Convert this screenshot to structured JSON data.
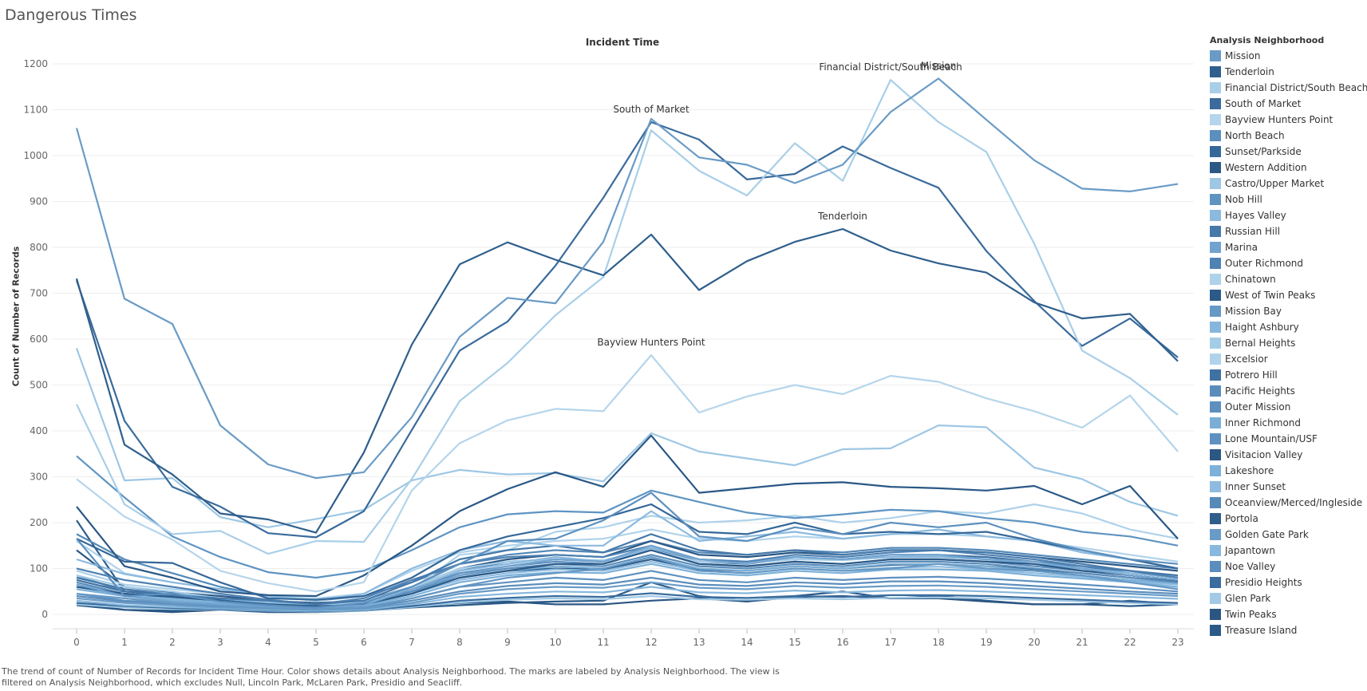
{
  "page": {
    "title": "Dangerous Times",
    "column_header": "Incident Time",
    "y_axis_title": "Count of Number of Records",
    "caption": "The trend of count of Number of Records for Incident Time Hour.  Color shows details about Analysis Neighborhood.  The marks are labeled by Analysis Neighborhood. The view is filtered on Analysis Neighborhood, which excludes Null, Lincoln Park, McLaren Park, Presidio and Seacliff."
  },
  "legend": {
    "title": "Analysis Neighborhood"
  },
  "chart_data": {
    "type": "line",
    "title": "Dangerous Times",
    "xlabel": "Incident Time",
    "ylabel": "Count of Number of Records",
    "x": [
      0,
      1,
      2,
      3,
      4,
      5,
      6,
      7,
      8,
      9,
      10,
      11,
      12,
      13,
      14,
      15,
      16,
      17,
      18,
      19,
      20,
      21,
      22,
      23
    ],
    "ylim": [
      0,
      1200
    ],
    "yticks": [
      0,
      100,
      200,
      300,
      400,
      500,
      600,
      700,
      800,
      900,
      1000,
      1100,
      1200
    ],
    "grid": "horizontal",
    "legend_position": "right",
    "series": [
      {
        "name": "Mission",
        "color": "#6a9bc6",
        "label": true,
        "values": [
          1060,
          688,
          633,
          412,
          327,
          297,
          310,
          430,
          605,
          690,
          678,
          812,
          1080,
          996,
          980,
          940,
          980,
          1095,
          1168,
          1078,
          990,
          928,
          922,
          938
        ]
      },
      {
        "name": "Tenderloin",
        "color": "#2f5f8c",
        "label": true,
        "values": [
          732,
          370,
          305,
          220,
          207,
          178,
          353,
          588,
          763,
          811,
          773,
          739,
          828,
          707,
          770,
          812,
          840,
          793,
          765,
          745,
          680,
          645,
          655,
          552
        ]
      },
      {
        "name": "Financial District/South Beach",
        "color": "#a9cfe8",
        "label": true,
        "values": [
          458,
          240,
          175,
          182,
          132,
          160,
          158,
          295,
          465,
          548,
          652,
          735,
          1055,
          967,
          913,
          1027,
          945,
          1165,
          1073,
          1008,
          808,
          575,
          515,
          435
        ]
      },
      {
        "name": "South of Market",
        "color": "#3a6b9c",
        "label": true,
        "values": [
          728,
          422,
          278,
          235,
          177,
          168,
          225,
          402,
          575,
          638,
          760,
          908,
          1073,
          1035,
          948,
          960,
          1020,
          973,
          930,
          792,
          683,
          585,
          645,
          560
        ]
      },
      {
        "name": "Bayview Hunters Point",
        "color": "#b5d5ec",
        "label": true,
        "values": [
          295,
          213,
          163,
          95,
          68,
          50,
          70,
          270,
          373,
          423,
          448,
          443,
          565,
          440,
          475,
          500,
          480,
          520,
          507,
          471,
          443,
          407,
          477,
          355
        ]
      },
      {
        "name": "North Beach",
        "color": "#5b8fbe",
        "label": false,
        "values": [
          165,
          40,
          45,
          28,
          20,
          15,
          25,
          60,
          110,
          160,
          165,
          205,
          265,
          170,
          160,
          190,
          175,
          200,
          190,
          200,
          165,
          140,
          120,
          110
        ]
      },
      {
        "name": "Sunset/Parkside",
        "color": "#356899",
        "label": false,
        "values": [
          165,
          115,
          112,
          70,
          35,
          32,
          40,
          80,
          140,
          170,
          190,
          210,
          240,
          180,
          175,
          200,
          175,
          180,
          175,
          180,
          160,
          140,
          120,
          100
        ]
      },
      {
        "name": "Western Addition",
        "color": "#2a5885",
        "label": false,
        "values": [
          235,
          105,
          80,
          50,
          42,
          40,
          85,
          150,
          225,
          273,
          310,
          278,
          390,
          265,
          275,
          285,
          288,
          278,
          275,
          270,
          280,
          240,
          280,
          165
        ]
      },
      {
        "name": "Castro/Upper Market",
        "color": "#9ec7e4",
        "label": false,
        "values": [
          580,
          292,
          297,
          212,
          190,
          208,
          228,
          292,
          315,
          305,
          308,
          290,
          395,
          355,
          340,
          325,
          360,
          362,
          412,
          408,
          320,
          295,
          245,
          215
        ]
      },
      {
        "name": "Nob Hill",
        "color": "#5f94c2",
        "label": false,
        "values": [
          345,
          255,
          170,
          125,
          92,
          80,
          95,
          140,
          190,
          218,
          225,
          222,
          270,
          245,
          222,
          210,
          218,
          228,
          225,
          210,
          200,
          180,
          170,
          150
        ]
      },
      {
        "name": "Hayes Valley",
        "color": "#8cbadf",
        "label": false,
        "values": [
          120,
          88,
          70,
          55,
          40,
          30,
          45,
          100,
          140,
          160,
          150,
          150,
          225,
          160,
          170,
          180,
          165,
          175,
          185,
          170,
          160,
          135,
          120,
          100
        ]
      },
      {
        "name": "Russian Hill",
        "color": "#4679aa",
        "label": false,
        "values": [
          80,
          55,
          42,
          35,
          30,
          22,
          30,
          70,
          120,
          140,
          150,
          135,
          175,
          140,
          130,
          140,
          130,
          140,
          140,
          135,
          125,
          110,
          95,
          85
        ]
      },
      {
        "name": "Marina",
        "color": "#72a3cf",
        "label": false,
        "values": [
          65,
          40,
          28,
          22,
          18,
          15,
          20,
          55,
          85,
          105,
          120,
          115,
          150,
          120,
          110,
          125,
          120,
          130,
          130,
          120,
          115,
          100,
          85,
          75
        ]
      },
      {
        "name": "Outer Richmond",
        "color": "#4f82b3",
        "label": false,
        "values": [
          100,
          75,
          60,
          45,
          32,
          22,
          35,
          75,
          110,
          125,
          130,
          125,
          150,
          120,
          115,
          130,
          125,
          135,
          140,
          130,
          120,
          105,
          95,
          80
        ]
      },
      {
        "name": "Chinatown",
        "color": "#aed2ea",
        "label": false,
        "values": [
          95,
          65,
          55,
          45,
          32,
          22,
          25,
          55,
          130,
          140,
          180,
          190,
          215,
          200,
          205,
          215,
          200,
          210,
          225,
          220,
          240,
          220,
          185,
          165
        ]
      },
      {
        "name": "West of Twin Peaks",
        "color": "#2c5a88",
        "label": false,
        "values": [
          60,
          45,
          38,
          30,
          22,
          18,
          22,
          45,
          80,
          95,
          110,
          110,
          140,
          110,
          105,
          115,
          110,
          120,
          120,
          115,
          110,
          95,
          85,
          75
        ]
      },
      {
        "name": "Mission Bay",
        "color": "#6698c5",
        "label": false,
        "values": [
          45,
          35,
          25,
          20,
          15,
          12,
          15,
          35,
          60,
          80,
          90,
          100,
          125,
          95,
          90,
          100,
          95,
          100,
          110,
          100,
          95,
          85,
          70,
          55
        ]
      },
      {
        "name": "Haight Ashbury",
        "color": "#86b6dc",
        "label": false,
        "values": [
          80,
          55,
          45,
          35,
          25,
          18,
          25,
          55,
          95,
          110,
          125,
          115,
          145,
          120,
          115,
          125,
          120,
          125,
          125,
          120,
          110,
          100,
          90,
          80
        ]
      },
      {
        "name": "Bernal Heights",
        "color": "#a5cce7",
        "label": false,
        "values": [
          85,
          60,
          50,
          35,
          28,
          20,
          28,
          60,
          100,
          115,
          120,
          118,
          140,
          115,
          112,
          120,
          118,
          125,
          128,
          120,
          110,
          100,
          90,
          82
        ]
      },
      {
        "name": "Excelsior",
        "color": "#b0d3eb",
        "label": false,
        "values": [
          160,
          90,
          70,
          55,
          40,
          35,
          45,
          95,
          135,
          150,
          160,
          165,
          185,
          165,
          160,
          170,
          165,
          175,
          175,
          170,
          160,
          145,
          130,
          115
        ]
      },
      {
        "name": "Potrero Hill",
        "color": "#3f71a2",
        "label": false,
        "values": [
          75,
          50,
          45,
          35,
          25,
          18,
          25,
          55,
          95,
          115,
          120,
          115,
          145,
          115,
          110,
          125,
          120,
          130,
          130,
          125,
          115,
          105,
          90,
          80
        ]
      },
      {
        "name": "Pacific Heights",
        "color": "#5a8dbb",
        "label": false,
        "values": [
          70,
          45,
          38,
          30,
          22,
          18,
          22,
          50,
          85,
          100,
          110,
          105,
          130,
          105,
          100,
          110,
          105,
          115,
          115,
          110,
          100,
          90,
          80,
          70
        ]
      },
      {
        "name": "Outer Mission",
        "color": "#5d90bf",
        "label": false,
        "values": [
          85,
          50,
          42,
          35,
          25,
          20,
          25,
          55,
          90,
          105,
          115,
          110,
          140,
          110,
          105,
          115,
          110,
          120,
          120,
          115,
          105,
          95,
          85,
          75
        ]
      },
      {
        "name": "Inner Richmond",
        "color": "#7aaed6",
        "label": false,
        "values": [
          65,
          45,
          38,
          30,
          22,
          18,
          22,
          50,
          80,
          95,
          105,
          100,
          125,
          100,
          95,
          105,
          100,
          110,
          110,
          105,
          95,
          85,
          75,
          68
        ]
      },
      {
        "name": "Lone Mountain/USF",
        "color": "#5e91c0",
        "label": false,
        "values": [
          45,
          30,
          25,
          20,
          15,
          12,
          15,
          35,
          60,
          70,
          80,
          75,
          95,
          75,
          70,
          80,
          75,
          80,
          82,
          78,
          72,
          65,
          58,
          50
        ]
      },
      {
        "name": "Visitacion Valley",
        "color": "#2b5784",
        "label": false,
        "values": [
          140,
          60,
          48,
          40,
          30,
          25,
          30,
          60,
          100,
          120,
          130,
          125,
          160,
          130,
          125,
          135,
          130,
          140,
          140,
          135,
          125,
          115,
          105,
          95
        ]
      },
      {
        "name": "Lakeshore",
        "color": "#7cb1d9",
        "label": false,
        "values": [
          55,
          40,
          32,
          25,
          18,
          15,
          18,
          40,
          70,
          85,
          92,
          90,
          110,
          90,
          85,
          95,
          90,
          98,
          98,
          95,
          85,
          78,
          70,
          60
        ]
      },
      {
        "name": "Inner Sunset",
        "color": "#8ebbdf",
        "label": false,
        "values": [
          60,
          42,
          35,
          28,
          20,
          16,
          20,
          45,
          75,
          90,
          98,
          95,
          115,
          95,
          90,
          100,
          95,
          102,
          104,
          98,
          90,
          82,
          72,
          65
        ]
      },
      {
        "name": "Oceanview/Merced/Ingleside",
        "color": "#5589b8",
        "label": false,
        "values": [
          175,
          120,
          90,
          60,
          40,
          30,
          40,
          70,
          110,
          130,
          140,
          135,
          160,
          135,
          130,
          140,
          135,
          145,
          145,
          140,
          130,
          120,
          110,
          100
        ]
      },
      {
        "name": "Portola",
        "color": "#2e5d8b",
        "label": false,
        "values": [
          205,
          50,
          40,
          32,
          24,
          20,
          24,
          50,
          80,
          95,
          100,
          98,
          120,
          98,
          95,
          105,
          100,
          108,
          110,
          105,
          98,
          90,
          80,
          72
        ]
      },
      {
        "name": "Golden Gate Park",
        "color": "#699bc7",
        "label": false,
        "values": [
          35,
          25,
          20,
          15,
          12,
          10,
          12,
          25,
          45,
          55,
          60,
          58,
          70,
          58,
          55,
          62,
          58,
          62,
          63,
          60,
          55,
          50,
          45,
          40
        ]
      },
      {
        "name": "Japantown",
        "color": "#88b8dd",
        "label": false,
        "values": [
          30,
          20,
          16,
          13,
          10,
          8,
          10,
          22,
          38,
          45,
          50,
          48,
          60,
          48,
          46,
          52,
          48,
          52,
          53,
          50,
          46,
          42,
          38,
          34
        ]
      },
      {
        "name": "Noe Valley",
        "color": "#5b8ebd",
        "label": false,
        "values": [
          40,
          28,
          22,
          18,
          14,
          10,
          14,
          30,
          50,
          62,
          68,
          65,
          80,
          65,
          62,
          70,
          66,
          72,
          72,
          68,
          62,
          56,
          50,
          45
        ]
      },
      {
        "name": "Presidio Heights",
        "color": "#3b6c9d",
        "label": false,
        "values": [
          25,
          18,
          14,
          11,
          9,
          7,
          9,
          18,
          30,
          36,
          40,
          38,
          46,
          38,
          36,
          40,
          38,
          42,
          42,
          40,
          36,
          32,
          28,
          25
        ]
      },
      {
        "name": "Glen Park",
        "color": "#a2cae6",
        "label": false,
        "values": [
          22,
          15,
          12,
          10,
          8,
          6,
          8,
          16,
          26,
          32,
          35,
          33,
          40,
          33,
          32,
          35,
          33,
          36,
          37,
          35,
          32,
          28,
          25,
          22
        ]
      },
      {
        "name": "Twin Peaks",
        "color": "#2b5683",
        "label": false,
        "values": [
          25,
          10,
          5,
          10,
          8,
          6,
          10,
          18,
          25,
          28,
          22,
          22,
          30,
          35,
          28,
          38,
          40,
          35,
          35,
          28,
          22,
          22,
          30,
          22
        ]
      },
      {
        "name": "Treasure Island",
        "color": "#2a5a88",
        "label": false,
        "values": [
          20,
          10,
          8,
          10,
          5,
          5,
          8,
          15,
          20,
          25,
          28,
          30,
          70,
          40,
          30,
          40,
          50,
          35,
          40,
          30,
          22,
          22,
          18,
          22
        ]
      }
    ]
  }
}
